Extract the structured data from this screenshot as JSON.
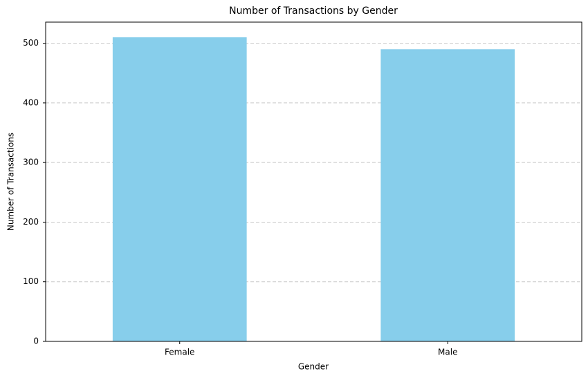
{
  "chart_data": {
    "type": "bar",
    "title": "Number of Transactions by Gender",
    "x_label": "Gender",
    "y_label": "Number of Transactions",
    "categories": [
      "Female",
      "Male"
    ],
    "values": [
      510,
      490
    ],
    "color": "#87ceeb",
    "ylim": [
      0,
      535.5
    ],
    "yticks": [
      0,
      100,
      200,
      300,
      400,
      500
    ],
    "grid": true
  }
}
